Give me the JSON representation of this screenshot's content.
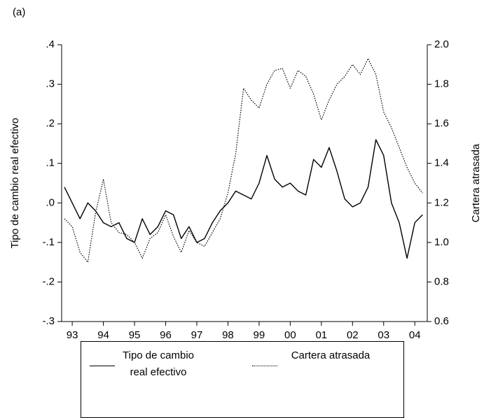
{
  "chart_data": {
    "type": "line",
    "panel_label": "(a)",
    "ylabel": "Tipo de cambio real efectivo",
    "y2label": "Cartera atrasada",
    "x": [
      1993.25,
      1993.5,
      1993.75,
      1994.0,
      1994.25,
      1994.5,
      1994.75,
      1995.0,
      1995.25,
      1995.5,
      1995.75,
      1996.0,
      1996.25,
      1996.5,
      1996.75,
      1997.0,
      1997.25,
      1997.5,
      1997.75,
      1998.0,
      1998.25,
      1998.5,
      1998.75,
      1999.0,
      1999.25,
      1999.5,
      1999.75,
      2000.0,
      2000.25,
      2000.5,
      2000.75,
      2001.0,
      2001.25,
      2001.5,
      2001.75,
      2002.0,
      2002.25,
      2002.5,
      2002.75,
      2003.0,
      2003.25,
      2003.5,
      2003.75,
      2004.0,
      2004.25,
      2004.5,
      2004.75
    ],
    "series": [
      {
        "name": "Tipo de cambio real efectivo",
        "color": "#000000",
        "dash": false,
        "values": [
          0.04,
          0.0,
          -0.04,
          0.0,
          -0.02,
          -0.05,
          -0.06,
          -0.05,
          -0.09,
          -0.1,
          -0.04,
          -0.08,
          -0.06,
          -0.02,
          -0.03,
          -0.09,
          -0.06,
          -0.1,
          -0.09,
          -0.05,
          -0.02,
          0.0,
          0.03,
          0.02,
          0.01,
          0.05,
          0.12,
          0.06,
          0.04,
          0.05,
          0.03,
          0.02,
          0.11,
          0.09,
          0.14,
          0.08,
          0.01,
          -0.01,
          0.0,
          0.04,
          0.16,
          0.12,
          0.0,
          -0.05,
          -0.14,
          -0.05,
          -0.03
        ]
      },
      {
        "name": "Cartera atrasada",
        "color": "#000000",
        "dash": true,
        "axis": "y2",
        "values": [
          1.12,
          1.08,
          0.95,
          0.9,
          1.15,
          1.32,
          1.1,
          1.05,
          1.04,
          1.0,
          0.92,
          1.02,
          1.05,
          1.14,
          1.03,
          0.95,
          1.06,
          1.0,
          0.98,
          1.05,
          1.12,
          1.25,
          1.45,
          1.78,
          1.72,
          1.68,
          1.8,
          1.87,
          1.88,
          1.78,
          1.87,
          1.84,
          1.75,
          1.62,
          1.72,
          1.8,
          1.84,
          1.9,
          1.85,
          1.93,
          1.85,
          1.66,
          1.58,
          1.48,
          1.38,
          1.3,
          1.25
        ]
      }
    ],
    "xlim": [
      1993.16,
      2004.9
    ],
    "xticks": [
      {
        "value": 1993.5,
        "label": "93"
      },
      {
        "value": 1994.5,
        "label": "94"
      },
      {
        "value": 1995.5,
        "label": "95"
      },
      {
        "value": 1996.5,
        "label": "96"
      },
      {
        "value": 1997.5,
        "label": "97"
      },
      {
        "value": 1998.5,
        "label": "98"
      },
      {
        "value": 1999.5,
        "label": "99"
      },
      {
        "value": 2000.5,
        "label": "00"
      },
      {
        "value": 2001.5,
        "label": "01"
      },
      {
        "value": 2002.5,
        "label": "02"
      },
      {
        "value": 2003.5,
        "label": "03"
      },
      {
        "value": 2004.5,
        "label": "04"
      }
    ],
    "ylim": [
      -0.3,
      0.4
    ],
    "yticks": [
      {
        "value": 0.4,
        "label": ".4"
      },
      {
        "value": 0.3,
        "label": ".3"
      },
      {
        "value": 0.2,
        "label": ".2"
      },
      {
        "value": 0.1,
        "label": ".1"
      },
      {
        "value": 0.0,
        "label": ".0"
      },
      {
        "value": -0.1,
        "label": "-.1"
      },
      {
        "value": -0.2,
        "label": "-.2"
      },
      {
        "value": -0.3,
        "label": "-.3"
      }
    ],
    "y2lim": [
      0.6,
      2.0
    ],
    "y2ticks": [
      {
        "value": 2.0,
        "label": "2.0"
      },
      {
        "value": 1.8,
        "label": "1.8"
      },
      {
        "value": 1.6,
        "label": "1.6"
      },
      {
        "value": 1.4,
        "label": "1.4"
      },
      {
        "value": 1.2,
        "label": "1.2"
      },
      {
        "value": 1.0,
        "label": "1.0"
      },
      {
        "value": 0.8,
        "label": "0.8"
      },
      {
        "value": 0.6,
        "label": "0.6"
      }
    ]
  }
}
